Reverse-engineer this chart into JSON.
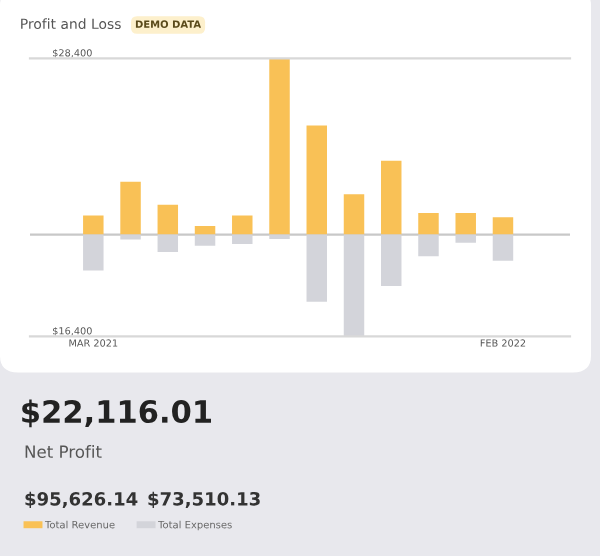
{
  "chart_data": {
    "type": "bar",
    "title": "Profit and Loss",
    "categories": [
      "MAR 2021",
      null,
      null,
      null,
      null,
      null,
      null,
      null,
      null,
      null,
      null,
      "FEB 2022"
    ],
    "series": [
      {
        "name": "Total Revenue",
        "color": "#f9c156",
        "values": [
          3100,
          8500,
          4800,
          1400,
          3100,
          28400,
          17600,
          6500,
          11900,
          3500,
          3500,
          2800
        ]
      },
      {
        "name": "Total Expenses",
        "color": "#d3d4da",
        "values": [
          -5800,
          -800,
          -2800,
          -1800,
          -1500,
          -700,
          -10800,
          -16400,
          -8300,
          -3500,
          -1300,
          -4200
        ]
      }
    ],
    "ylim": [
      -16400,
      28400
    ],
    "yticks": [
      {
        "value": 28400,
        "label": "$28,400"
      },
      {
        "value": -16400,
        "label": "$16,400"
      }
    ],
    "stacked": true,
    "legend": "bottom",
    "annotations": [
      "DEMO DATA",
      "$22,116.01",
      "Net Profit",
      "$95,626.14",
      "$73,510.13"
    ]
  }
}
